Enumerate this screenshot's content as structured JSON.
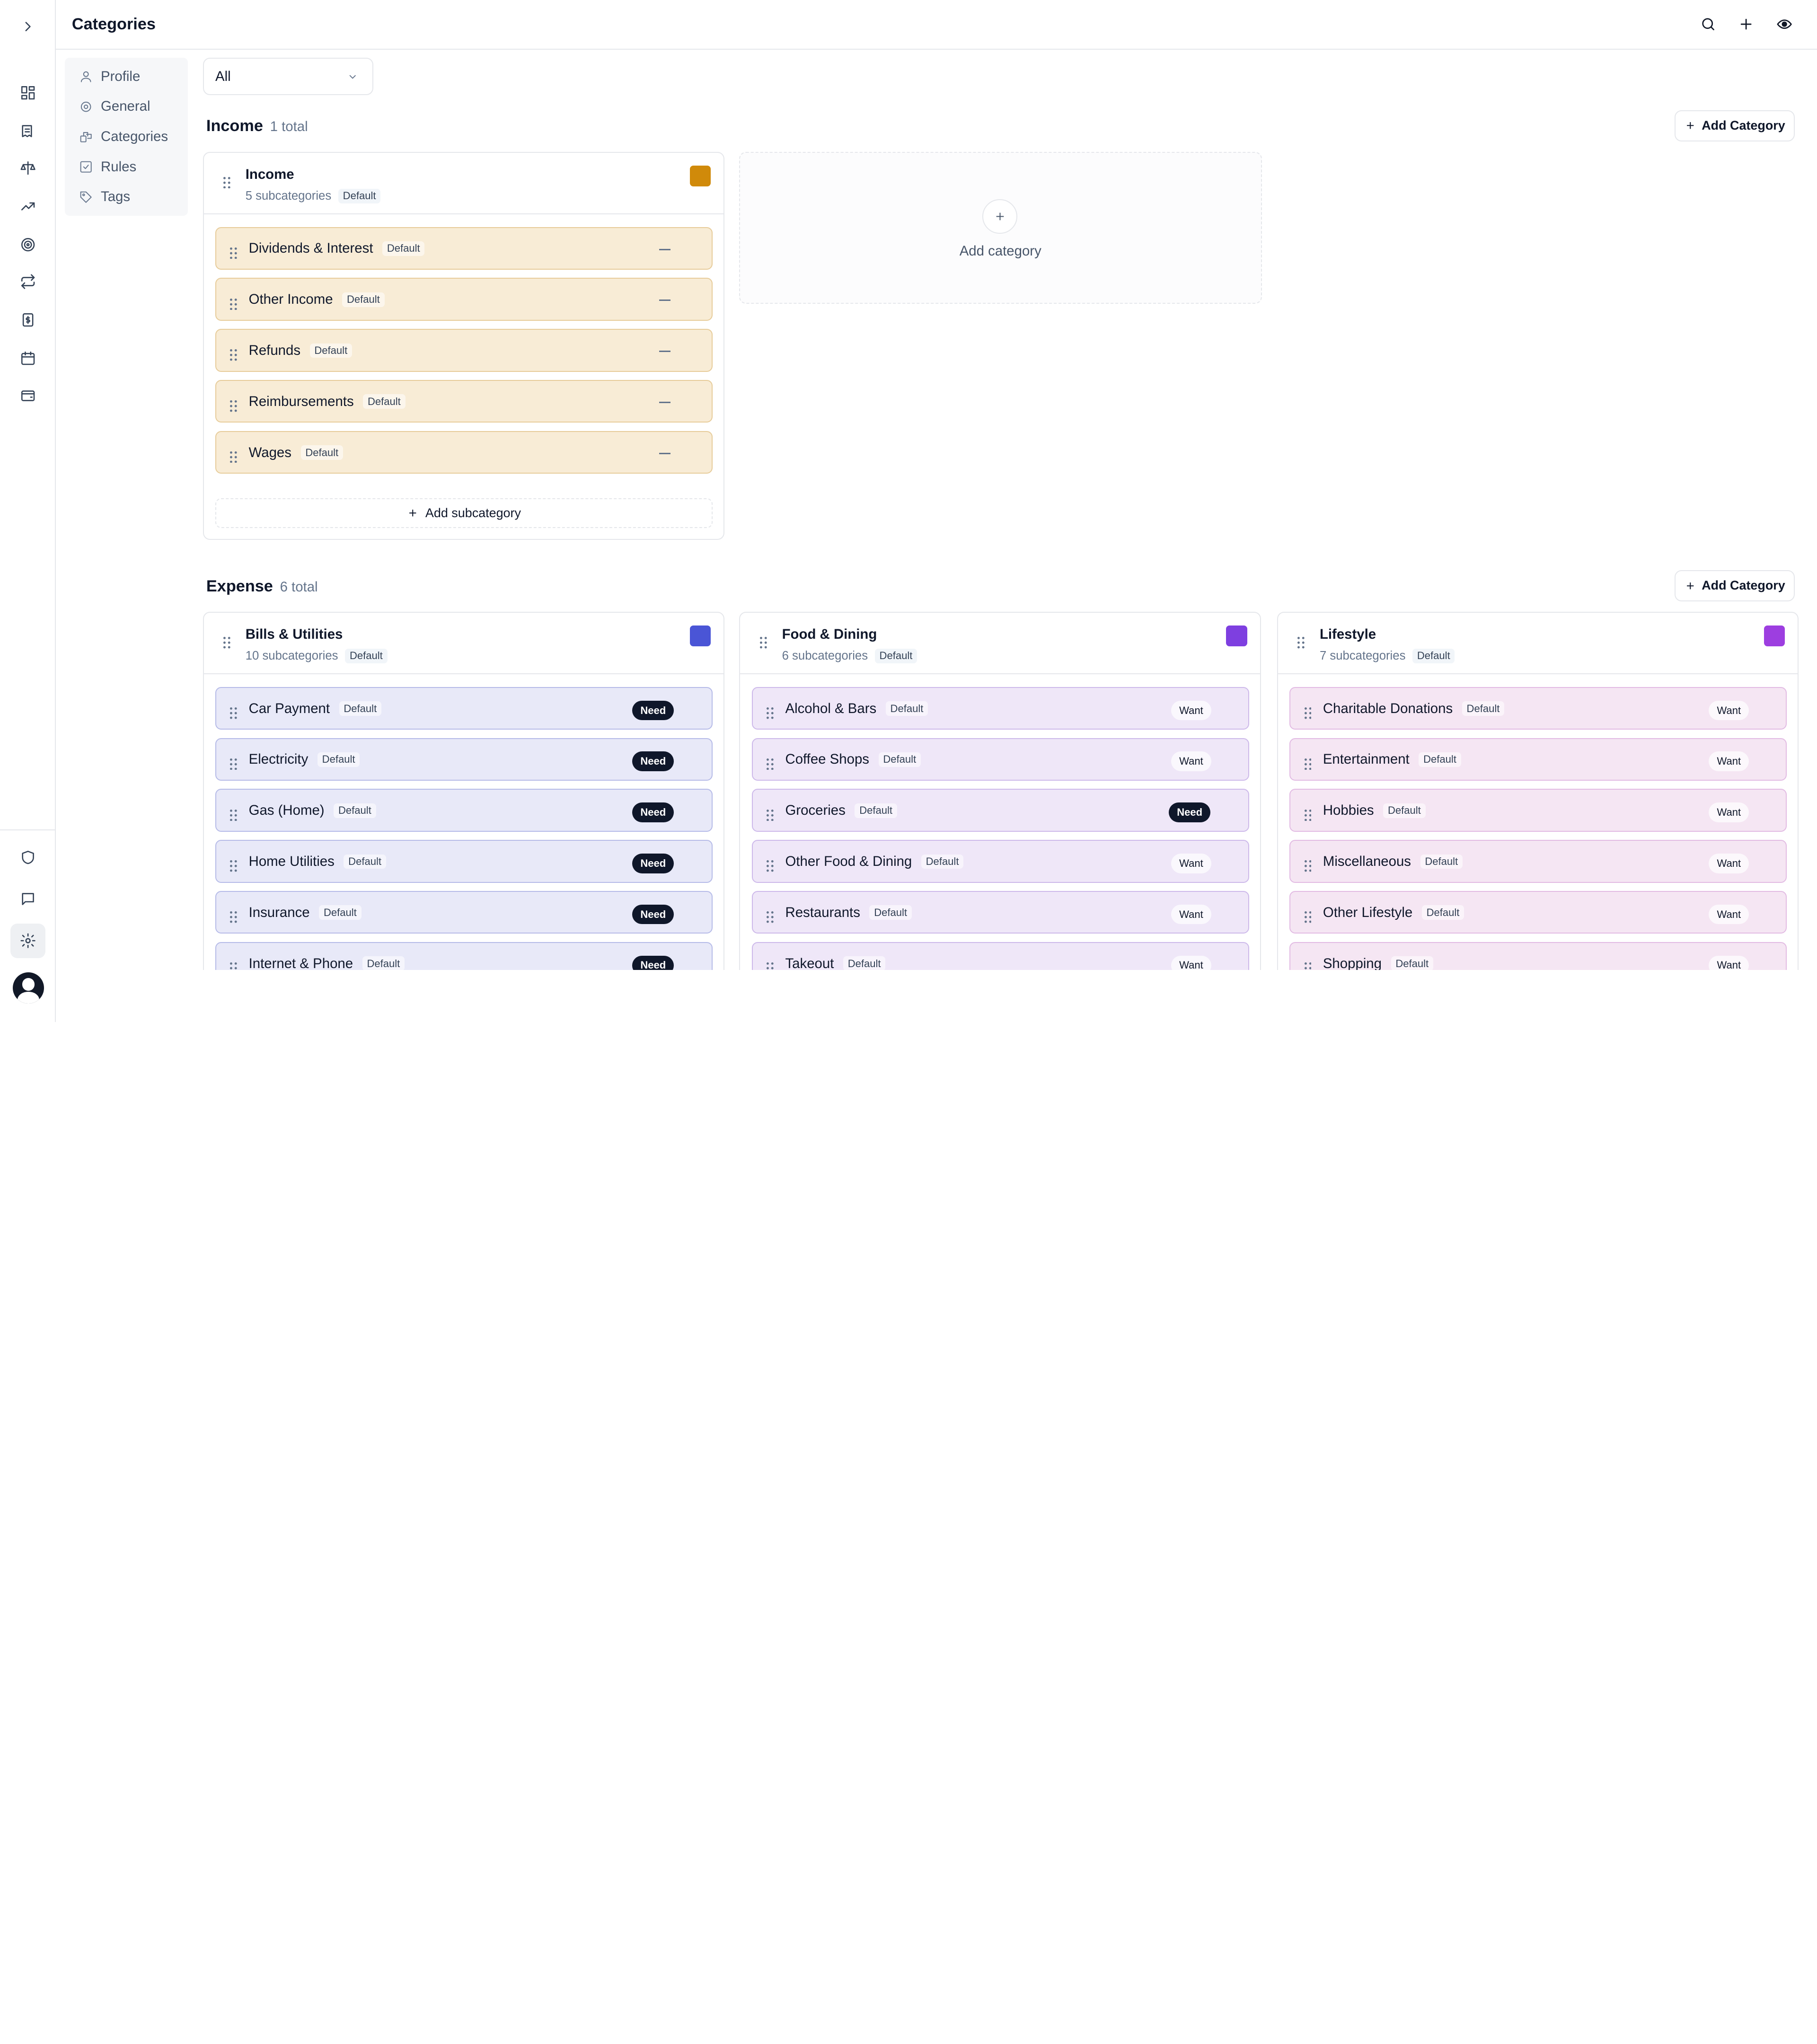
{
  "header": {
    "title": "Categories"
  },
  "settings_nav": [
    {
      "label": "Profile",
      "icon": "user-icon"
    },
    {
      "label": "General",
      "icon": "gear-icon"
    },
    {
      "label": "Categories",
      "icon": "shapes-icon"
    },
    {
      "label": "Rules",
      "icon": "checkbox-icon"
    },
    {
      "label": "Tags",
      "icon": "tag-icon"
    }
  ],
  "filter": {
    "value": "All"
  },
  "income": {
    "title": "Income",
    "count": "1 total",
    "add_label": "Add Category",
    "card": {
      "title": "Income",
      "sub_count": "5 subcategories",
      "badge": "Default",
      "color": "#d08a0a",
      "rows": [
        {
          "name": "Dividends & Interest",
          "badge": "Default"
        },
        {
          "name": "Other Income",
          "badge": "Default"
        },
        {
          "name": "Refunds",
          "badge": "Default"
        },
        {
          "name": "Reimbursements",
          "badge": "Default"
        },
        {
          "name": "Wages",
          "badge": "Default"
        }
      ],
      "add_sub_label": "Add subcategory"
    },
    "add_card_label": "Add category"
  },
  "expense": {
    "title": "Expense",
    "count": "6 total",
    "add_label": "Add Category",
    "cards": [
      {
        "title": "Bills & Utilities",
        "sub_count": "10 subcategories",
        "badge": "Default",
        "color": "#4a55d6",
        "rows": [
          {
            "name": "Car Payment",
            "badge": "Default",
            "type": "Need"
          },
          {
            "name": "Electricity",
            "badge": "Default",
            "type": "Need"
          },
          {
            "name": "Gas (Home)",
            "badge": "Default",
            "type": "Need"
          },
          {
            "name": "Home Utilities",
            "badge": "Default",
            "type": "Need"
          },
          {
            "name": "Insurance",
            "badge": "Default",
            "type": "Need"
          },
          {
            "name": "Internet & Phone",
            "badge": "Default",
            "type": "Need"
          }
        ]
      },
      {
        "title": "Food & Dining",
        "sub_count": "6 subcategories",
        "badge": "Default",
        "color": "#7e3fe0",
        "rows": [
          {
            "name": "Alcohol & Bars",
            "badge": "Default",
            "type": "Want"
          },
          {
            "name": "Coffee Shops",
            "badge": "Default",
            "type": "Want"
          },
          {
            "name": "Groceries",
            "badge": "Default",
            "type": "Need"
          },
          {
            "name": "Other Food & Dining",
            "badge": "Default",
            "type": "Want"
          },
          {
            "name": "Restaurants",
            "badge": "Default",
            "type": "Want"
          },
          {
            "name": "Takeout",
            "badge": "Default",
            "type": "Want"
          }
        ]
      },
      {
        "title": "Lifestyle",
        "sub_count": "7 subcategories",
        "badge": "Default",
        "color": "#9d3ee0",
        "rows": [
          {
            "name": "Charitable Donations",
            "badge": "Default",
            "type": "Want"
          },
          {
            "name": "Entertainment",
            "badge": "Default",
            "type": "Want"
          },
          {
            "name": "Hobbies",
            "badge": "Default",
            "type": "Want"
          },
          {
            "name": "Miscellaneous",
            "badge": "Default",
            "type": "Want"
          },
          {
            "name": "Other Lifestyle",
            "badge": "Default",
            "type": "Want"
          },
          {
            "name": "Shopping",
            "badge": "Default",
            "type": "Want"
          }
        ]
      }
    ]
  }
}
